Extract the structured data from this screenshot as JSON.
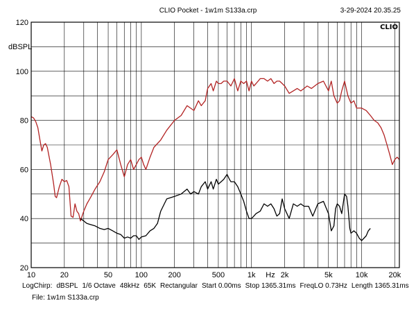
{
  "header": {
    "app_title": "CLIO Pocket - 1w1m S133a.crp",
    "timestamp": "3-29-2024 20.35.25",
    "logo": "CLIO"
  },
  "footer": {
    "settings": [
      "LogChirp:",
      "dBSPL",
      "1/6 Octave",
      "48kHz",
      "65K",
      "Rectangular",
      "Start 0.00ms",
      "Stop 1365.31ms",
      "FreqLO 0.73Hz",
      "Length 1365.31ms"
    ],
    "file": "File: 1w1m S133a.crp"
  },
  "chart_data": {
    "type": "line",
    "title": "",
    "xlabel": "Hz",
    "ylabel": "dBSPL",
    "xscale": "log",
    "xlim": [
      10,
      22000
    ],
    "ylim": [
      20,
      120
    ],
    "x_tick_values": [
      10,
      20,
      50,
      100,
      200,
      500,
      1000,
      2000,
      5000,
      10000,
      20000
    ],
    "x_tick_labels": [
      "10",
      "20",
      "50",
      "100",
      "200",
      "500",
      "1k",
      "2k",
      "5k",
      "10k",
      "20k"
    ],
    "y_tick_values": [
      20,
      40,
      60,
      80,
      100,
      120
    ],
    "y_tick_labels": [
      "20",
      "40",
      "60",
      "80",
      "100",
      "120"
    ],
    "grid": true,
    "series": [
      {
        "color": "#b22222",
        "x": [
          10,
          10.5,
          11,
          11.5,
          12,
          12.5,
          13,
          13.5,
          14,
          15,
          16,
          16.5,
          17,
          18,
          19,
          20,
          21,
          22,
          23,
          24,
          25,
          26,
          27,
          28,
          30,
          32,
          35,
          38,
          42,
          46,
          50,
          55,
          60,
          65,
          70,
          75,
          80,
          85,
          90,
          95,
          100,
          105,
          110,
          120,
          130,
          150,
          170,
          200,
          230,
          260,
          300,
          330,
          350,
          380,
          400,
          430,
          450,
          480,
          500,
          530,
          560,
          600,
          650,
          700,
          750,
          800,
          850,
          900,
          950,
          1000,
          1050,
          1100,
          1200,
          1300,
          1400,
          1500,
          1600,
          1700,
          1800,
          1900,
          2000,
          2200,
          2400,
          2600,
          2800,
          3000,
          3200,
          3500,
          4000,
          4500,
          5000,
          5300,
          5600,
          6000,
          6300,
          6600,
          7000,
          7500,
          8000,
          8500,
          9000,
          10000,
          11000,
          12000,
          13000,
          14000,
          15000,
          16000,
          17000,
          18000,
          19000,
          20000,
          21000,
          22000
        ],
        "y": [
          81.5,
          81,
          79.5,
          77,
          72,
          67.5,
          70,
          70.5,
          69,
          62,
          54,
          49,
          48.5,
          53,
          56,
          55,
          55.5,
          53,
          41,
          40.5,
          46,
          43,
          42,
          39,
          43,
          46,
          49,
          52,
          55,
          59,
          64,
          66,
          68,
          62,
          57,
          62,
          64,
          60,
          62,
          64,
          65,
          62,
          60,
          65,
          69,
          72,
          76,
          80,
          82,
          86,
          84,
          88,
          86,
          88,
          93,
          95,
          92,
          96,
          95,
          95,
          96,
          96,
          94,
          97,
          92,
          96,
          95,
          96,
          92,
          96,
          94,
          95,
          97,
          97,
          96,
          97,
          95,
          96,
          96,
          95,
          94,
          91,
          92,
          93,
          92,
          93,
          94,
          93,
          95,
          96,
          92,
          96,
          90,
          87,
          88,
          92,
          96,
          90,
          87,
          88,
          85,
          85,
          84,
          82,
          80,
          79,
          77,
          74,
          70,
          66,
          62,
          64,
          65,
          64
        ]
      },
      {
        "color": "#000000",
        "x": [
          28,
          30,
          32,
          35,
          38,
          42,
          46,
          50,
          55,
          60,
          65,
          70,
          75,
          80,
          85,
          90,
          95,
          100,
          110,
          120,
          130,
          140,
          150,
          170,
          200,
          230,
          260,
          280,
          300,
          330,
          350,
          380,
          400,
          430,
          450,
          480,
          500,
          530,
          560,
          600,
          630,
          650,
          700,
          750,
          800,
          850,
          900,
          950,
          1000,
          1050,
          1100,
          1200,
          1300,
          1400,
          1500,
          1600,
          1700,
          1800,
          1900,
          2000,
          2200,
          2400,
          2600,
          2800,
          3000,
          3300,
          3600,
          4000,
          4500,
          5000,
          5300,
          5600,
          5800,
          6000,
          6300,
          6600,
          7000,
          7300,
          7500,
          7800,
          8000,
          8500,
          9000,
          9500,
          10000,
          10500,
          11000,
          11500,
          12000
        ],
        "y": [
          40,
          39,
          38,
          37.5,
          37,
          36,
          35.5,
          36,
          35,
          34,
          33.5,
          32,
          32.5,
          32,
          33,
          33,
          31.5,
          32.5,
          33,
          35,
          36,
          38,
          43,
          48,
          49,
          50,
          52,
          50,
          51,
          50,
          53,
          55,
          52,
          55,
          52,
          56,
          54,
          55,
          56,
          58,
          56,
          55,
          55,
          53,
          50,
          47,
          43,
          40,
          40,
          41,
          42,
          43,
          46,
          45,
          46,
          44,
          41,
          42,
          48,
          44,
          40,
          46,
          45,
          46,
          45,
          45,
          41,
          46,
          47,
          42,
          35,
          37,
          44,
          46,
          45,
          42,
          50,
          49,
          45,
          36,
          34,
          35,
          34,
          32,
          31,
          32,
          33,
          35,
          36
        ]
      }
    ]
  }
}
